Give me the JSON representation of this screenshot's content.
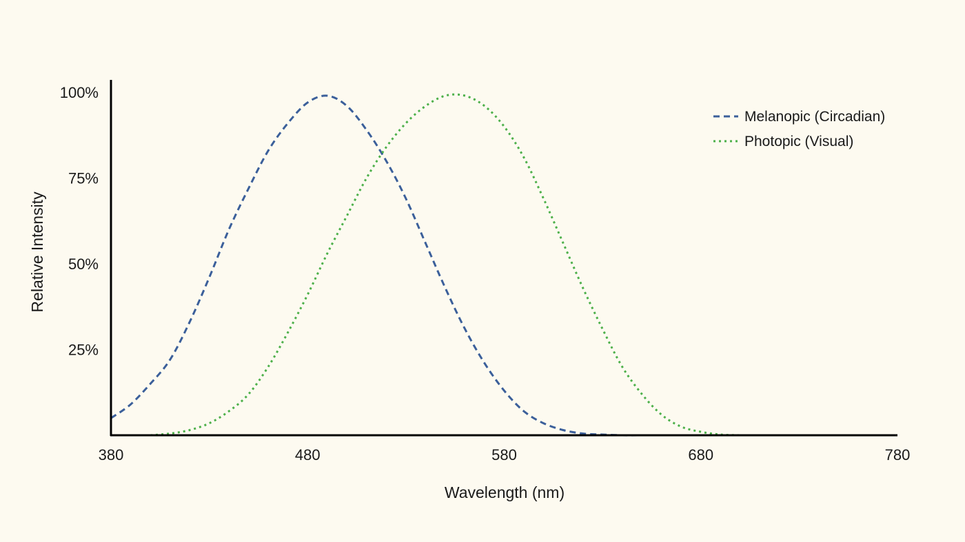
{
  "chart_data": {
    "type": "line",
    "title": "",
    "xlabel": "Wavelength (nm)",
    "ylabel": "Relative Intensity",
    "xlim": [
      380,
      780
    ],
    "ylim": [
      0,
      100
    ],
    "x_ticks": [
      380,
      480,
      580,
      680,
      780
    ],
    "x_tick_labels": [
      "380",
      "480",
      "580",
      "680",
      "780"
    ],
    "y_ticks": [
      25,
      50,
      75,
      100
    ],
    "y_tick_labels": [
      "25%",
      "50%",
      "75%",
      "100%"
    ],
    "grid": false,
    "legend_position": "top-right",
    "series": [
      {
        "name": "Melanopic (Circadian)",
        "color": "#3b5f9a",
        "line_style": "dashed",
        "x": [
          380,
          390,
          400,
          410,
          420,
          430,
          440,
          450,
          460,
          470,
          480,
          490,
          500,
          510,
          520,
          530,
          540,
          550,
          560,
          570,
          580,
          590,
          600,
          610,
          620,
          630,
          640,
          650
        ],
        "y": [
          5,
          9,
          15,
          22,
          33,
          46,
          60,
          72,
          83,
          91,
          97,
          99,
          96,
          89,
          80,
          69,
          56,
          43,
          31,
          21,
          13,
          7,
          3.5,
          1.5,
          0.5,
          0.2,
          0,
          0
        ]
      },
      {
        "name": "Photopic (Visual)",
        "color": "#4db04a",
        "line_style": "dotted",
        "x": [
          400,
          410,
          420,
          430,
          440,
          450,
          460,
          470,
          480,
          490,
          500,
          510,
          520,
          530,
          540,
          550,
          560,
          570,
          580,
          590,
          600,
          610,
          620,
          630,
          640,
          650,
          660,
          670,
          680,
          690,
          700
        ],
        "y": [
          0,
          0.5,
          1.5,
          3.5,
          7,
          12,
          20,
          30,
          41,
          53,
          64,
          75,
          84,
          91,
          96,
          99,
          99,
          96,
          90,
          81,
          69,
          56,
          43,
          31,
          20,
          12,
          6,
          2.5,
          1,
          0.2,
          0
        ]
      }
    ]
  }
}
